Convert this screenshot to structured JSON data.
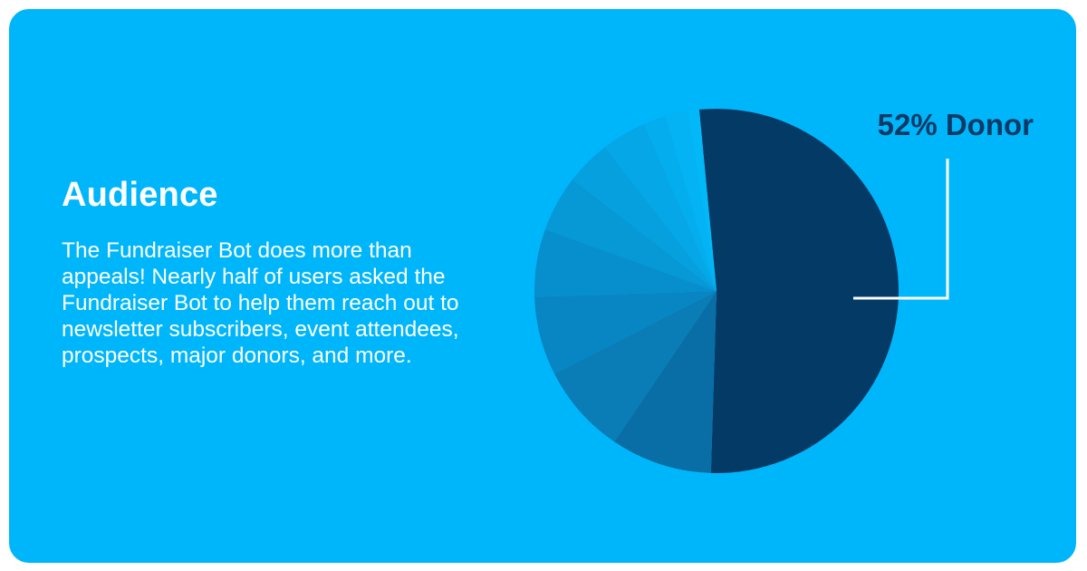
{
  "card": {
    "heading": "Audience",
    "body": "The Fundraiser Bot does more than appeals! Nearly half of users asked the Fundraiser Bot to help them reach out to newsletter subscribers, event attendees, prospects, major donors, and more."
  },
  "colors": {
    "background": "#00b6fb",
    "text": "#ffffff",
    "donor_slice": "#043a66",
    "callout_line": "#ffffff",
    "callout_text": "#0b3a66"
  },
  "chart_data": {
    "type": "pie",
    "title": "",
    "callout": "52% Donor",
    "slices": [
      {
        "label": "Donor",
        "value": 52,
        "color": "#043a66"
      },
      {
        "label": "",
        "value": 9,
        "color": "#0a6ea6"
      },
      {
        "label": "",
        "value": 8,
        "color": "#0a7db7"
      },
      {
        "label": "",
        "value": 7,
        "color": "#0886c4"
      },
      {
        "label": "",
        "value": 6,
        "color": "#078fcd"
      },
      {
        "label": "",
        "value": 5,
        "color": "#0798d6"
      },
      {
        "label": "",
        "value": 4,
        "color": "#06a0de"
      },
      {
        "label": "",
        "value": 4,
        "color": "#05a7e6"
      },
      {
        "label": "",
        "value": 2,
        "color": "#04aeee"
      },
      {
        "label": "",
        "value": 2,
        "color": "#03b3f3"
      },
      {
        "label": "",
        "value": 1,
        "color": "#02b8f7"
      }
    ]
  }
}
